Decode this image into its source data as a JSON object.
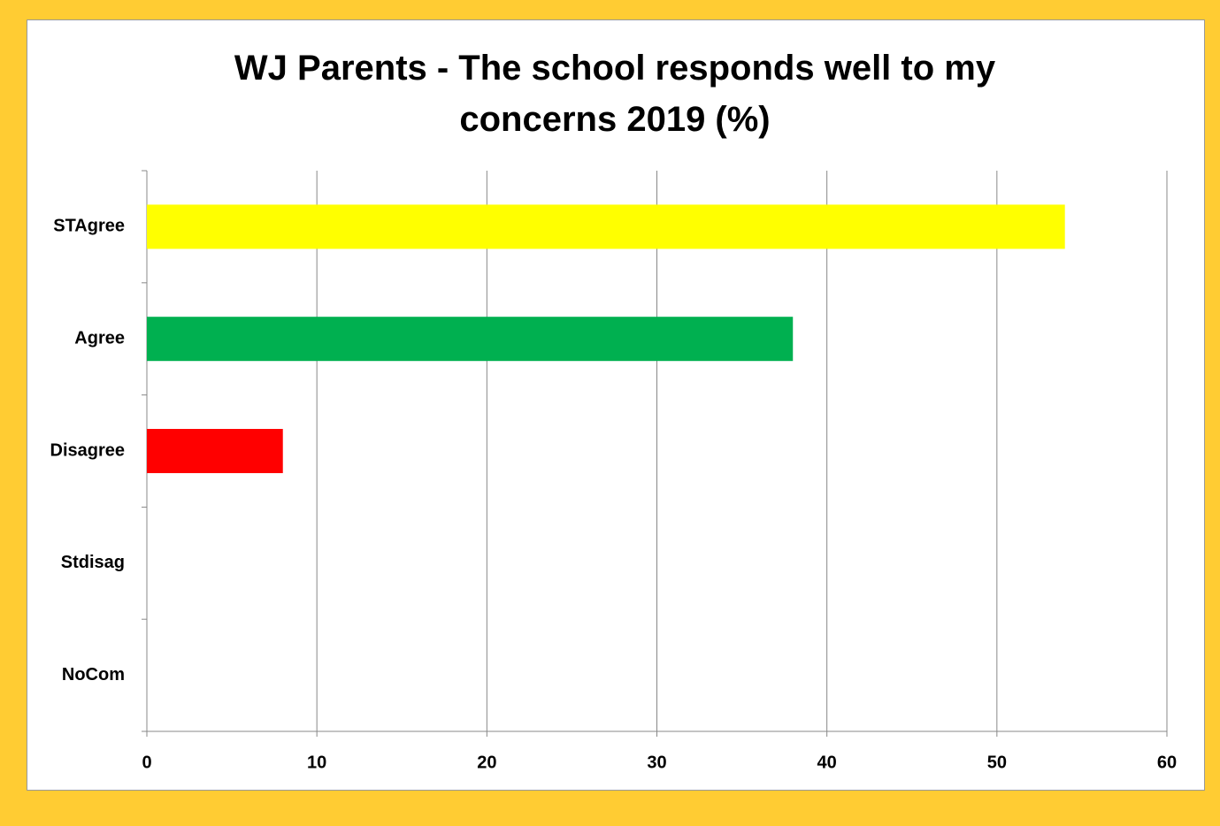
{
  "chart_data": {
    "type": "bar",
    "orientation": "horizontal",
    "title": "WJ Parents - The school responds well to my concerns 2019 (%)",
    "categories": [
      "STAgree",
      "Agree",
      "Disagree",
      "Stdisag",
      "NoCom"
    ],
    "values": [
      54,
      38,
      8,
      0,
      0
    ],
    "colors": [
      "#ffff00",
      "#00b050",
      "#ff0000",
      null,
      null
    ],
    "xlim": [
      0,
      60
    ],
    "xticks": [
      0,
      10,
      20,
      30,
      40,
      50,
      60
    ],
    "grid": true
  }
}
